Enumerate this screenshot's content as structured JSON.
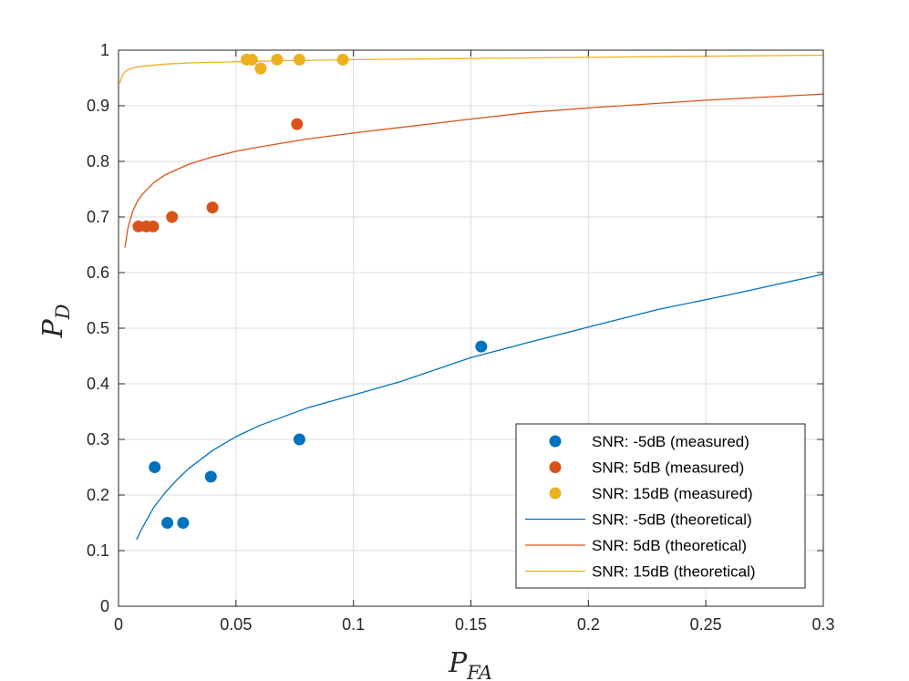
{
  "chart_data": {
    "type": "scatter",
    "title": "",
    "xlabel": {
      "main": "P",
      "sub": "FA"
    },
    "ylabel": {
      "main": "P",
      "sub": "D"
    },
    "xlim": [
      0,
      0.3
    ],
    "ylim": [
      0,
      1
    ],
    "grid": true,
    "legend_position": "bottom-right",
    "x_ticks": [
      {
        "value": 0,
        "label": "0"
      },
      {
        "value": 0.05,
        "label": "0.05"
      },
      {
        "value": 0.1,
        "label": "0.1"
      },
      {
        "value": 0.15,
        "label": "0.15"
      },
      {
        "value": 0.2,
        "label": "0.2"
      },
      {
        "value": 0.25,
        "label": "0.25"
      },
      {
        "value": 0.3,
        "label": "0.3"
      }
    ],
    "y_ticks": [
      {
        "value": 0,
        "label": "0"
      },
      {
        "value": 0.1,
        "label": "0.1"
      },
      {
        "value": 0.2,
        "label": "0.2"
      },
      {
        "value": 0.3,
        "label": "0.3"
      },
      {
        "value": 0.4,
        "label": "0.4"
      },
      {
        "value": 0.5,
        "label": "0.5"
      },
      {
        "value": 0.6,
        "label": "0.6"
      },
      {
        "value": 0.7,
        "label": "0.7"
      },
      {
        "value": 0.8,
        "label": "0.8"
      },
      {
        "value": 0.9,
        "label": "0.9"
      },
      {
        "value": 1,
        "label": "1"
      }
    ],
    "series": [
      {
        "name": "SNR: -5dB (measured)",
        "kind": "scatter",
        "color": "#0072BD",
        "x": [
          0.0154,
          0.0208,
          0.0275,
          0.0393,
          0.077,
          0.1544
        ],
        "y": [
          0.25,
          0.15,
          0.15,
          0.233,
          0.3,
          0.467
        ]
      },
      {
        "name": "SNR: 5dB (measured)",
        "kind": "scatter",
        "color": "#D95319",
        "x": [
          0.0085,
          0.0118,
          0.0147,
          0.0228,
          0.04,
          0.076
        ],
        "y": [
          0.683,
          0.683,
          0.683,
          0.7,
          0.717,
          0.867
        ]
      },
      {
        "name": "SNR: 15dB (measured)",
        "kind": "scatter",
        "color": "#EDB120",
        "x": [
          0.0545,
          0.0568,
          0.0605,
          0.0675,
          0.077,
          0.0955
        ],
        "y": [
          0.983,
          0.983,
          0.967,
          0.983,
          0.983,
          0.983
        ]
      },
      {
        "name": "SNR: -5dB (theoretical)",
        "kind": "line",
        "color": "#0072BD",
        "x": [
          0.0077,
          0.01,
          0.015,
          0.02,
          0.025,
          0.03,
          0.04,
          0.05,
          0.06,
          0.08,
          0.1,
          0.12,
          0.15,
          0.175,
          0.2,
          0.23,
          0.26,
          0.3
        ],
        "y": [
          0.12,
          0.14,
          0.178,
          0.205,
          0.228,
          0.248,
          0.28,
          0.305,
          0.325,
          0.356,
          0.38,
          0.404,
          0.447,
          0.475,
          0.502,
          0.534,
          0.56,
          0.597
        ]
      },
      {
        "name": "SNR: 5dB (theoretical)",
        "kind": "line",
        "color": "#D95319",
        "x": [
          0.0027,
          0.004,
          0.006,
          0.008,
          0.01,
          0.015,
          0.02,
          0.03,
          0.04,
          0.05,
          0.06,
          0.08,
          0.1,
          0.12,
          0.15,
          0.175,
          0.2,
          0.25,
          0.3
        ],
        "y": [
          0.645,
          0.68,
          0.71,
          0.728,
          0.74,
          0.762,
          0.776,
          0.795,
          0.808,
          0.818,
          0.826,
          0.84,
          0.851,
          0.861,
          0.876,
          0.888,
          0.896,
          0.91,
          0.921
        ]
      },
      {
        "name": "SNR: 15dB (theoretical)",
        "kind": "line",
        "color": "#EDB120",
        "x": [
          0.0006,
          0.001,
          0.002,
          0.004,
          0.007,
          0.01,
          0.02,
          0.03,
          0.05,
          0.07,
          0.1,
          0.15,
          0.2,
          0.25,
          0.3
        ],
        "y": [
          0.94,
          0.948,
          0.958,
          0.965,
          0.969,
          0.971,
          0.975,
          0.977,
          0.979,
          0.981,
          0.983,
          0.985,
          0.987,
          0.989,
          0.991
        ]
      }
    ]
  }
}
